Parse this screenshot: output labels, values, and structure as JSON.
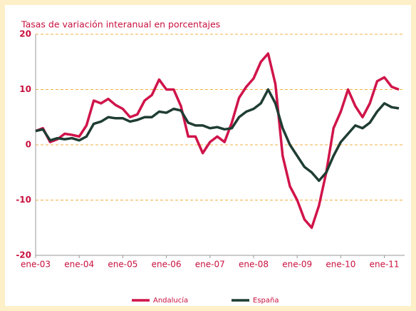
{
  "chart_data": {
    "type": "line",
    "title": "Tasas de variación interanual en porcentajes",
    "categories": [
      "ene-03",
      null,
      null,
      null,
      null,
      null,
      "ene-04",
      null,
      null,
      null,
      null,
      null,
      "ene-05",
      null,
      null,
      null,
      null,
      null,
      "ene-06",
      null,
      null,
      null,
      null,
      null,
      "ene-07",
      null,
      null,
      null,
      null,
      null,
      "ene-08",
      null,
      null,
      null,
      null,
      null,
      "ene-09",
      null,
      null,
      null,
      null,
      null,
      "ene-10",
      null,
      null,
      null,
      null,
      null,
      "ene-11",
      null,
      null
    ],
    "series": [
      {
        "name": "Andalucía",
        "color": "#d0144a",
        "values": [
          2.5,
          3,
          0.5,
          1,
          2,
          1.8,
          1.5,
          3.5,
          8,
          7.5,
          8.3,
          7.2,
          6.5,
          5,
          5.5,
          8,
          9,
          11.8,
          10,
          10,
          7,
          1.5,
          1.5,
          -1.5,
          0.5,
          1.5,
          0.5,
          4,
          8.5,
          10.5,
          12,
          15,
          16.5,
          11,
          -2,
          -7.5,
          -10,
          -13.5,
          -15,
          -11,
          -5,
          3,
          6,
          10,
          7,
          5,
          7.5,
          11.5,
          12.2,
          10.5,
          10
        ]
      },
      {
        "name": "España",
        "color": "#1f3d33",
        "values": [
          2.5,
          2.8,
          0.8,
          1.2,
          1,
          1.2,
          0.8,
          1.5,
          3.8,
          4.2,
          5,
          4.8,
          4.8,
          4.2,
          4.5,
          5,
          5,
          6,
          5.8,
          6.5,
          6.2,
          4,
          3.5,
          3.5,
          3,
          3.2,
          2.8,
          3,
          5,
          6,
          6.5,
          7.5,
          10,
          7.5,
          3,
          0,
          -2,
          -4,
          -5,
          -6.5,
          -5,
          -2,
          0.5,
          2,
          3.5,
          3,
          4,
          6,
          7.5,
          6.8,
          6.6
        ]
      }
    ],
    "ylim": [
      -20,
      20
    ],
    "yticks": [
      -20,
      -10,
      0,
      10,
      20
    ],
    "grid": true
  }
}
